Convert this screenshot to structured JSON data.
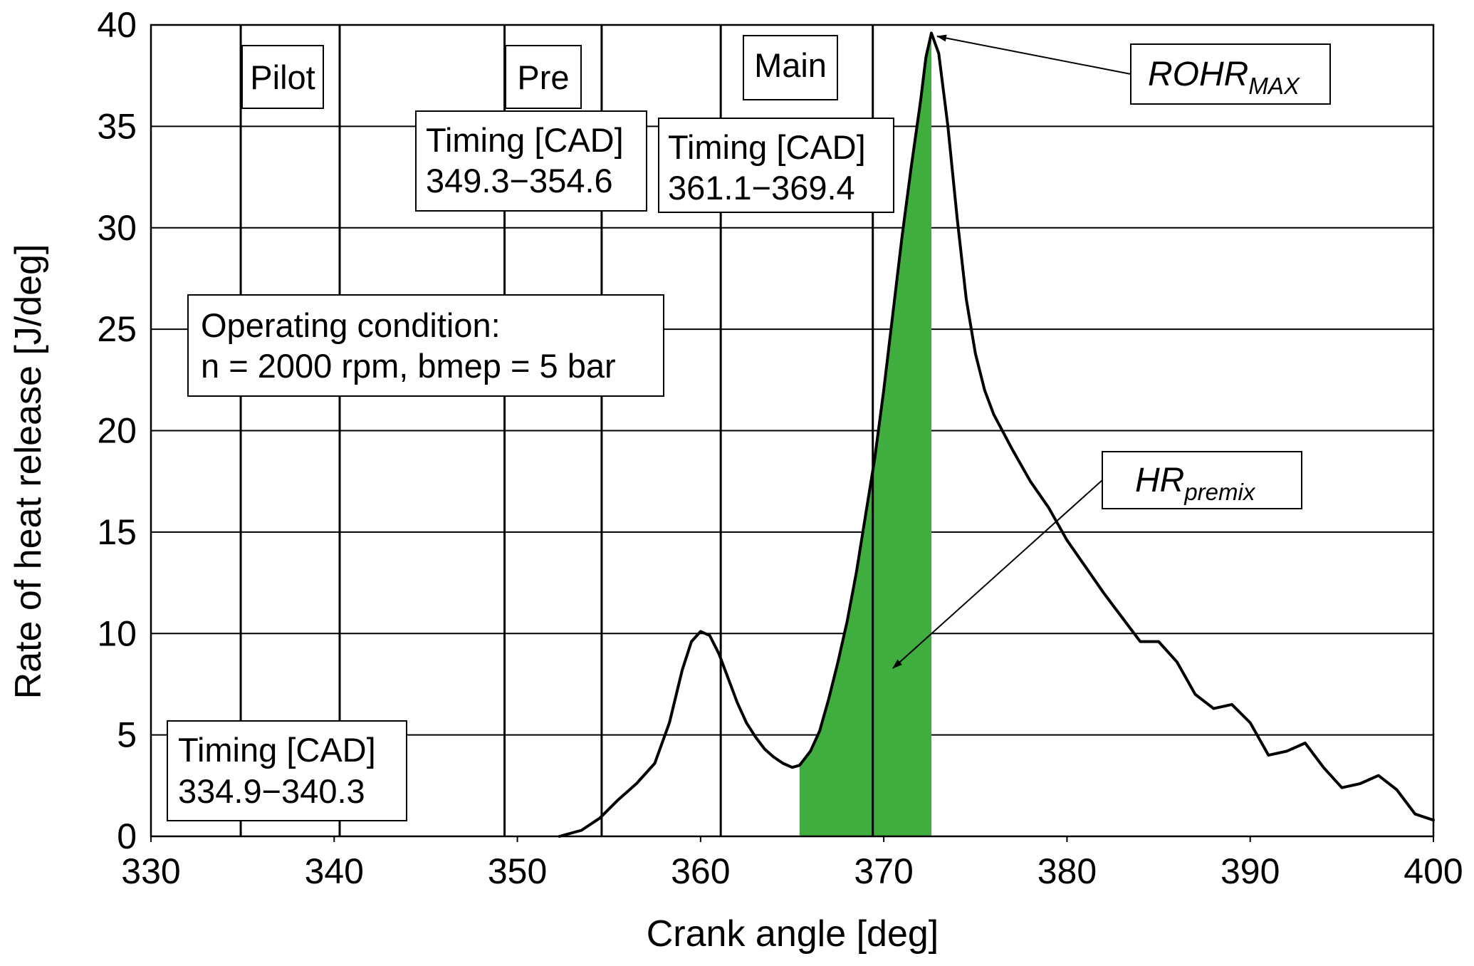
{
  "chart_data": {
    "type": "line",
    "xlabel": "Crank angle [deg]",
    "ylabel": "Rate of heat release [J/deg]",
    "xlim": [
      330,
      400
    ],
    "ylim": [
      0,
      40
    ],
    "x_ticks": [
      "330",
      "340",
      "350",
      "360",
      "370",
      "380",
      "390",
      "400"
    ],
    "y_ticks": [
      "0",
      "5",
      "10",
      "15",
      "20",
      "25",
      "30",
      "35",
      "40"
    ],
    "grid": "horizontal",
    "line_color": "#000000",
    "fill_color": "#3fae3f",
    "series": [
      {
        "name": "ROHR",
        "x": [
          352.3,
          353.5,
          354.5,
          355.5,
          356.5,
          357.5,
          358.3,
          359.0,
          359.5,
          360.0,
          360.5,
          361.0,
          361.5,
          362.0,
          362.5,
          363.0,
          363.5,
          364.0,
          364.5,
          365.0,
          365.4,
          366.0,
          366.5,
          367.0,
          367.5,
          368.0,
          368.5,
          369.0,
          369.5,
          370.0,
          370.5,
          371.0,
          371.5,
          372.0,
          372.3,
          372.6,
          373.0,
          373.5,
          374.0,
          374.5,
          375.0,
          375.5,
          376.0,
          377.0,
          378.0,
          379.0,
          380.0,
          381.0,
          382.0,
          383.0,
          384.0,
          385.0,
          386.0,
          387.0,
          388.0,
          389.0,
          390.0,
          391.0,
          392.0,
          393.0,
          394.0,
          395.0,
          396.0,
          397.0,
          398.0,
          399.0,
          400.0
        ],
        "y": [
          0.0,
          0.3,
          0.9,
          1.8,
          2.6,
          3.6,
          5.6,
          8.2,
          9.6,
          10.1,
          9.9,
          9.0,
          7.8,
          6.6,
          5.6,
          4.9,
          4.3,
          3.9,
          3.6,
          3.4,
          3.5,
          4.2,
          5.2,
          6.8,
          8.6,
          10.6,
          13.0,
          15.8,
          18.6,
          22.0,
          25.8,
          29.6,
          33.0,
          36.2,
          38.4,
          39.6,
          38.6,
          35.0,
          30.5,
          26.5,
          23.8,
          22.0,
          20.8,
          19.1,
          17.5,
          16.2,
          14.6,
          13.3,
          12.0,
          10.8,
          9.6,
          9.6,
          8.6,
          7.0,
          6.3,
          6.5,
          5.6,
          4.0,
          4.2,
          4.6,
          3.4,
          2.4,
          2.6,
          3.0,
          2.3,
          1.1,
          0.8
        ]
      }
    ],
    "premix_fill_range": [
      365.4,
      372.6
    ],
    "injection_lines": [
      334.9,
      340.3,
      349.3,
      354.6,
      361.1,
      369.4
    ],
    "annotations": {
      "pilot": "Pilot",
      "pre": "Pre",
      "main": "Main",
      "pre_timing_title": "Timing [CAD]",
      "pre_timing_range": "349.3−354.6",
      "main_timing_title": "Timing [CAD]",
      "main_timing_range": "361.1−369.4",
      "pilot_timing_title": "Timing [CAD]",
      "pilot_timing_range": "334.9−340.3",
      "operating_title": "Operating condition:",
      "operating_values": "n = 2000 rpm, bmep = 5 bar",
      "rohr_main": "ROHR",
      "rohr_sub": "MAX",
      "hr_main": "HR",
      "hr_sub": "premix"
    }
  }
}
